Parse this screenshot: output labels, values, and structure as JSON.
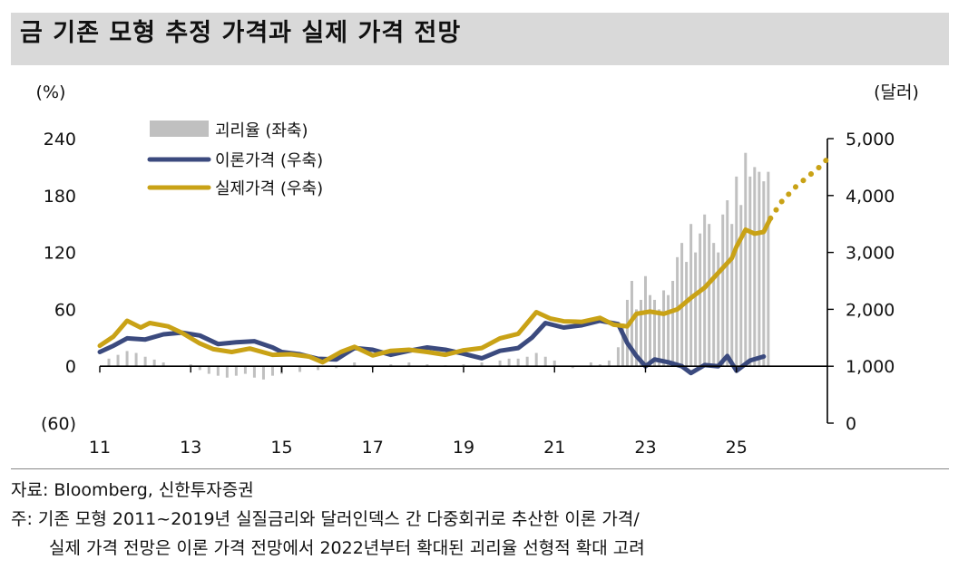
{
  "title": "금 기존 모형 추정 가격과 실제 가격 전망",
  "source": "자료: Bloomberg, 신한투자증권",
  "note_line1": "주: 기존 모형 2011~2019년 실질금리와 달러인덱스 간 다중회귀로 추산한 이론 가격/",
  "note_line2": "실제 가격 전망은 이론 가격 전망에서 2022년부터 확대된 괴리율 선형적 확대 고려",
  "colors": {
    "gap": "#c0c0c0",
    "theory": "#3b4a7e",
    "actual": "#c9a216",
    "title_bg": "#d9d9d9"
  },
  "chart_data": {
    "type": "bar+line",
    "left_axis": {
      "unit_label": "(%)",
      "ticks": [
        "240",
        "180",
        "120",
        "60",
        "0",
        "(60)"
      ],
      "tick_values": [
        240,
        180,
        120,
        60,
        0,
        -60
      ],
      "range": [
        -60,
        240
      ]
    },
    "right_axis": {
      "unit_label": "(달러)",
      "ticks": [
        "5,000",
        "4,000",
        "3,000",
        "2,000",
        "1,000",
        "0"
      ],
      "tick_values": [
        5000,
        4000,
        3000,
        2000,
        1000,
        0
      ],
      "range": [
        0,
        5000
      ]
    },
    "x_axis": {
      "ticks": [
        "11",
        "13",
        "15",
        "17",
        "19",
        "21",
        "23",
        "25"
      ],
      "tick_values": [
        2011,
        2013,
        2015,
        2017,
        2019,
        2021,
        2023,
        2025
      ],
      "range": [
        2011,
        2027
      ]
    },
    "legend": [
      {
        "key": "gap",
        "label": "괴리율 (좌축)"
      },
      {
        "key": "theory",
        "label": "이론가격 (우축)"
      },
      {
        "key": "actual",
        "label": "실제가격 (우축)"
      }
    ],
    "series": [
      {
        "name": "이론가격 (우축)",
        "axis": "right",
        "key": "theory",
        "x": [
          2011.0,
          2011.3,
          2011.6,
          2012.0,
          2012.4,
          2012.8,
          2013.2,
          2013.6,
          2014.0,
          2014.4,
          2014.8,
          2015.0,
          2015.4,
          2015.8,
          2016.2,
          2016.6,
          2017.0,
          2017.4,
          2017.8,
          2018.2,
          2018.6,
          2019.0,
          2019.4,
          2019.8,
          2020.2,
          2020.5,
          2020.8,
          2021.2,
          2021.6,
          2022.0,
          2022.4,
          2022.6,
          2022.8,
          2023.0,
          2023.2,
          2023.5,
          2023.8,
          2024.0,
          2024.3,
          2024.6,
          2024.8,
          2025.0,
          2025.3,
          2025.6
        ],
        "values": [
          1250,
          1360,
          1490,
          1470,
          1560,
          1590,
          1540,
          1390,
          1420,
          1440,
          1330,
          1250,
          1210,
          1130,
          1120,
          1320,
          1290,
          1200,
          1270,
          1330,
          1290,
          1220,
          1140,
          1270,
          1320,
          1500,
          1760,
          1680,
          1720,
          1800,
          1740,
          1410,
          1180,
          1000,
          1120,
          1070,
          1000,
          880,
          1020,
          1000,
          1180,
          920,
          1100,
          1170
        ]
      },
      {
        "name": "실제가격 (우축)",
        "axis": "right",
        "key": "actual",
        "x": [
          2011.0,
          2011.3,
          2011.6,
          2011.9,
          2012.1,
          2012.5,
          2012.8,
          2013.2,
          2013.5,
          2013.9,
          2014.3,
          2014.8,
          2015.2,
          2015.6,
          2015.9,
          2016.3,
          2016.6,
          2017.0,
          2017.4,
          2017.8,
          2018.2,
          2018.6,
          2019.0,
          2019.4,
          2019.8,
          2020.2,
          2020.6,
          2020.9,
          2021.2,
          2021.6,
          2022.0,
          2022.3,
          2022.6,
          2022.8,
          2023.1,
          2023.4,
          2023.7,
          2024.0,
          2024.3,
          2024.6,
          2024.9,
          2025.0,
          2025.2,
          2025.4,
          2025.6,
          2025.75
        ],
        "values": [
          1360,
          1520,
          1800,
          1680,
          1760,
          1700,
          1590,
          1400,
          1300,
          1250,
          1310,
          1200,
          1210,
          1170,
          1070,
          1250,
          1340,
          1190,
          1270,
          1290,
          1250,
          1200,
          1280,
          1320,
          1490,
          1570,
          1950,
          1840,
          1790,
          1780,
          1850,
          1730,
          1700,
          1920,
          1960,
          1920,
          2000,
          2200,
          2380,
          2640,
          2900,
          3100,
          3400,
          3330,
          3360,
          3600
        ]
      },
      {
        "name": "실제가격 전망",
        "axis": "right",
        "key": "actual",
        "style": "dotted",
        "x": [
          2025.75,
          2026.0,
          2026.3,
          2026.6,
          2026.9,
          2027.0
        ],
        "values": [
          3600,
          3900,
          4150,
          4350,
          4550,
          4650
        ]
      },
      {
        "name": "괴리율 (좌축)",
        "axis": "left",
        "key": "gap",
        "type": "bar",
        "x": [
          2011.2,
          2011.4,
          2011.6,
          2011.8,
          2012.0,
          2012.2,
          2012.4,
          2013.0,
          2013.2,
          2013.4,
          2013.6,
          2013.8,
          2014.0,
          2014.2,
          2014.4,
          2014.6,
          2014.8,
          2015.0,
          2015.4,
          2015.8,
          2016.2,
          2016.6,
          2017.0,
          2017.4,
          2017.8,
          2018.2,
          2018.6,
          2019.0,
          2019.4,
          2019.8,
          2020.0,
          2020.2,
          2020.4,
          2020.6,
          2020.8,
          2021.0,
          2021.4,
          2021.8,
          2022.0,
          2022.2,
          2022.4,
          2022.5,
          2022.6,
          2022.7,
          2022.8,
          2022.9,
          2023.0,
          2023.1,
          2023.2,
          2023.3,
          2023.4,
          2023.5,
          2023.6,
          2023.7,
          2023.8,
          2023.9,
          2024.0,
          2024.1,
          2024.2,
          2024.3,
          2024.4,
          2024.5,
          2024.6,
          2024.7,
          2024.8,
          2024.9,
          2025.0,
          2025.1,
          2025.2,
          2025.3,
          2025.4,
          2025.5,
          2025.6,
          2025.7
        ],
        "values": [
          8,
          12,
          16,
          14,
          10,
          7,
          4,
          2,
          -4,
          -8,
          -10,
          -12,
          -10,
          -8,
          -12,
          -14,
          -10,
          -8,
          -6,
          -4,
          -2,
          4,
          -2,
          2,
          4,
          2,
          1,
          2,
          4,
          6,
          8,
          8,
          10,
          14,
          10,
          6,
          -2,
          4,
          2,
          6,
          20,
          45,
          70,
          90,
          60,
          70,
          95,
          75,
          70,
          60,
          80,
          75,
          90,
          115,
          130,
          110,
          150,
          120,
          140,
          160,
          150,
          130,
          120,
          160,
          175,
          150,
          200,
          170,
          225,
          200,
          210,
          205,
          195,
          205
        ]
      }
    ]
  }
}
